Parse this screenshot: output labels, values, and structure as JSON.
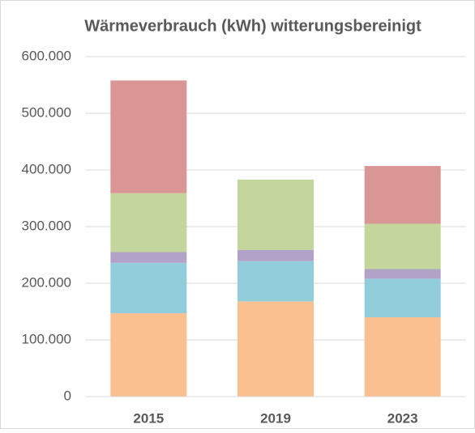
{
  "chart_data": {
    "type": "stacked_bar",
    "title": "Wärmeverbrauch (kWh) witterungsbereinigt",
    "categories": [
      "2015",
      "2019",
      "2023"
    ],
    "series": [
      {
        "color": "#fac090",
        "values": [
          147000,
          168000,
          140000
        ]
      },
      {
        "color": "#92cddc",
        "values": [
          89000,
          71000,
          68000
        ]
      },
      {
        "color": "#b3a2c7",
        "values": [
          19000,
          20000,
          17000
        ]
      },
      {
        "color": "#c3d69b",
        "values": [
          104000,
          124000,
          80000
        ]
      },
      {
        "color": "#d99694",
        "values": [
          199000,
          null,
          102000
        ]
      }
    ],
    "ylim": [
      0,
      600000
    ],
    "yticks": [
      0,
      {
        "value": 100000,
        "label": "100.000"
      },
      {
        "value": 200000,
        "label": "200.000"
      },
      {
        "value": 300000,
        "label": "300.000"
      },
      {
        "value": 400000,
        "label": "400.000"
      },
      {
        "value": 500000,
        "label": "500.000"
      },
      {
        "value": 600000,
        "label": "600.000"
      }
    ],
    "grid": true
  }
}
